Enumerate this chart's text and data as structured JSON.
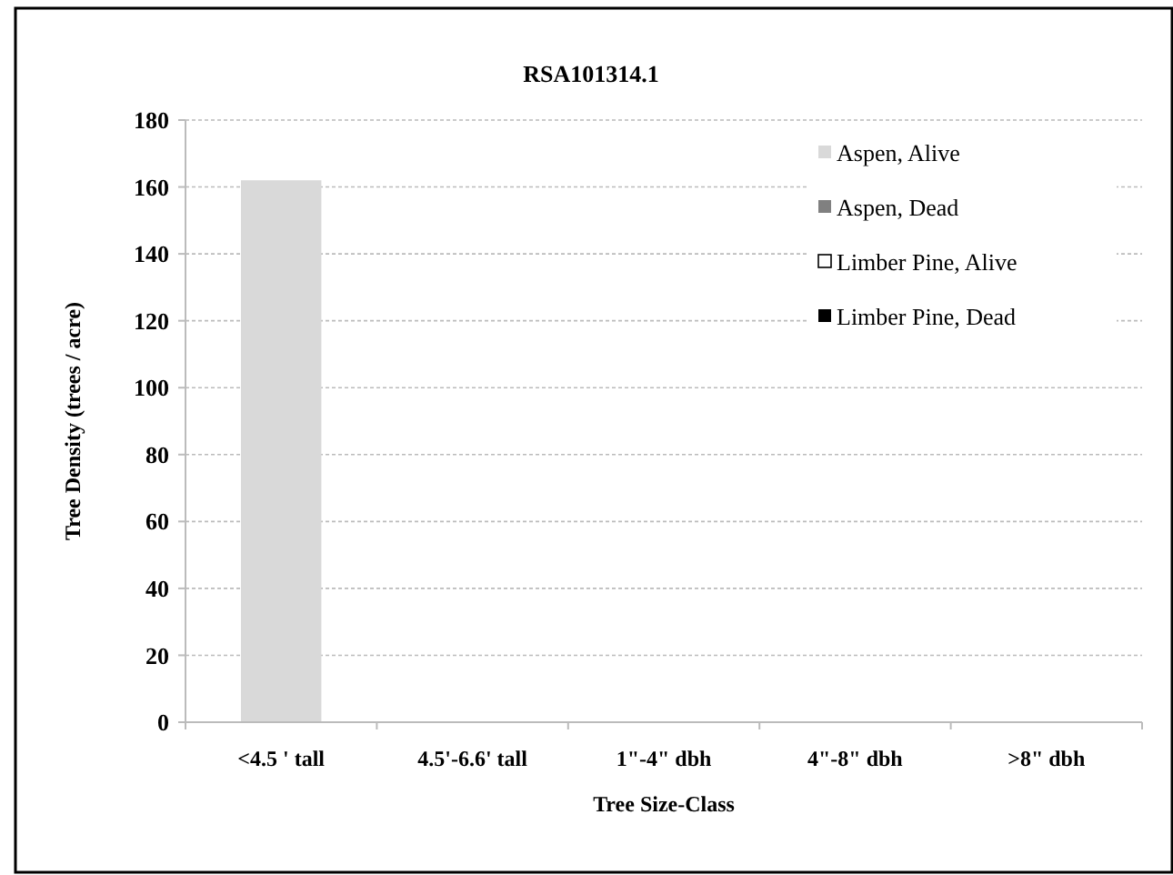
{
  "chart_data": {
    "type": "bar",
    "title": "RSA101314.1",
    "xlabel": "Tree Size-Class",
    "ylabel": "Tree Density (trees / acre)",
    "categories": [
      "<4.5 ' tall",
      "4.5'-6.6' tall",
      "1\"-4\" dbh",
      "4\"-8\" dbh",
      ">8\" dbh"
    ],
    "series": [
      {
        "name": "Aspen, Alive",
        "color": "#d9d9d9",
        "values": [
          162,
          0,
          0,
          0,
          0
        ]
      },
      {
        "name": "Aspen, Dead",
        "color": "#808080",
        "values": [
          0,
          0,
          0,
          0,
          0
        ]
      },
      {
        "name": "Limber Pine, Alive",
        "color": "#ffffff",
        "values": [
          0,
          0,
          0,
          0,
          0
        ]
      },
      {
        "name": "Limber Pine, Dead",
        "color": "#000000",
        "values": [
          0,
          0,
          0,
          0,
          0
        ]
      }
    ],
    "stacked": true,
    "ylim": [
      0,
      180
    ],
    "yticks": [
      0,
      20,
      40,
      60,
      80,
      100,
      120,
      140,
      160,
      180
    ],
    "grid": "y",
    "legend": "top right"
  }
}
